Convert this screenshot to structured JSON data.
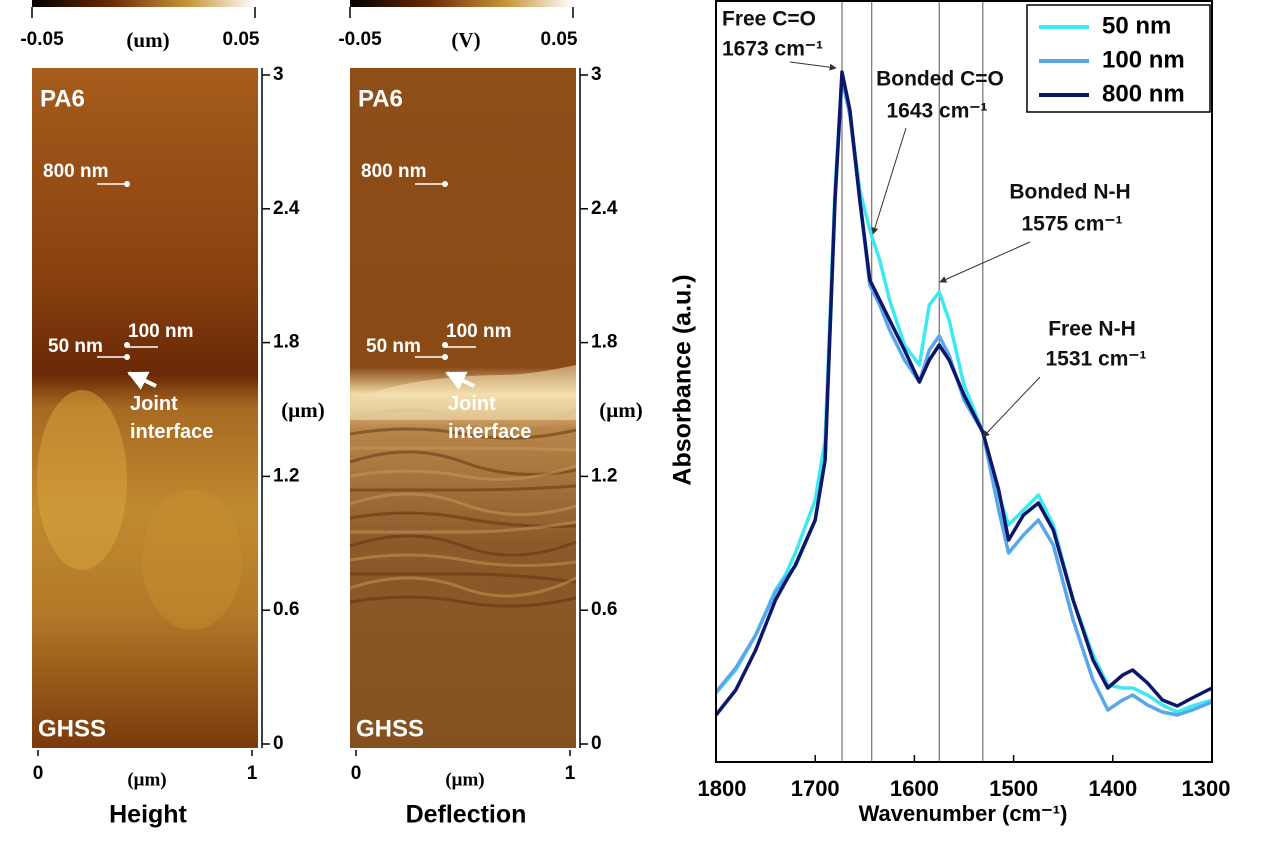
{
  "chart_data": [
    {
      "type": "heatmap",
      "title": "Height",
      "colorbar_label": "(um)",
      "clim": [
        -0.05,
        0.05
      ],
      "cticks": [
        -0.05,
        0.05
      ],
      "xlim": [
        0,
        1
      ],
      "xticks": [
        0,
        1
      ],
      "xlabel": "(μm)",
      "ylim": [
        0,
        3
      ],
      "yticks": [
        0,
        0.6,
        1.2,
        1.8,
        2.4,
        3
      ],
      "ylabel": "(μm)",
      "annotations": [
        "PA6",
        "GHSS",
        "800 nm",
        "50 nm",
        "100 nm",
        "Joint interface"
      ]
    },
    {
      "type": "heatmap",
      "title": "Deflection",
      "colorbar_label": "(V)",
      "clim": [
        -0.05,
        0.05
      ],
      "cticks": [
        -0.05,
        0.05
      ],
      "xlim": [
        0,
        1
      ],
      "xticks": [
        0,
        1
      ],
      "xlabel": "(μm)",
      "ylim": [
        0,
        3
      ],
      "yticks": [
        0,
        0.6,
        1.2,
        1.8,
        2.4,
        3
      ],
      "ylabel": "(μm)",
      "annotations": [
        "PA6",
        "GHSS",
        "800 nm",
        "50 nm",
        "100 nm",
        "Joint interface"
      ]
    },
    {
      "type": "line",
      "xlabel": "Wavenumber (cm⁻¹)",
      "ylabel": "Absorbance (a.u.)",
      "xlim": [
        1800,
        1300
      ],
      "xticks": [
        1800,
        1700,
        1600,
        1500,
        1400,
        1300
      ],
      "ylim": [
        0,
        762
      ],
      "legend": "upper right",
      "x": [
        1800,
        1780,
        1760,
        1740,
        1730,
        1720,
        1700,
        1690,
        1680,
        1673,
        1665,
        1655,
        1645,
        1635,
        1625,
        1610,
        1595,
        1585,
        1575,
        1565,
        1550,
        1531,
        1515,
        1505,
        1490,
        1475,
        1460,
        1440,
        1420,
        1405,
        1390,
        1380,
        1365,
        1350,
        1335,
        1320,
        1300
      ],
      "series": [
        {
          "name": "50 nm",
          "color": "#3ee8f0",
          "values": [
            69,
            92,
            127,
            172,
            187,
            209,
            262,
            322,
            572,
            687,
            647,
            572,
            532,
            502,
            462,
            417,
            397,
            457,
            470,
            442,
            377,
            330,
            267,
            237,
            252,
            267,
            237,
            162,
            107,
            77,
            74,
            74,
            67,
            57,
            50,
            56,
            62
          ]
        },
        {
          "name": "100 nm",
          "color": "#5aa6ec",
          "values": [
            70,
            94,
            127,
            170,
            184,
            196,
            242,
            302,
            562,
            684,
            647,
            562,
            477,
            457,
            432,
            402,
            380,
            412,
            426,
            407,
            362,
            330,
            252,
            209,
            227,
            242,
            217,
            142,
            82,
            52,
            62,
            67,
            57,
            50,
            47,
            52,
            60
          ]
        },
        {
          "name": "800 nm",
          "color": "#0c176a",
          "values": [
            47,
            72,
            112,
            162,
            180,
            197,
            242,
            302,
            562,
            690,
            652,
            562,
            482,
            462,
            442,
            412,
            380,
            402,
            417,
            402,
            367,
            330,
            272,
            222,
            247,
            259,
            232,
            162,
            102,
            74,
            87,
            92,
            79,
            62,
            56,
            64,
            74
          ]
        }
      ],
      "annotations": [
        {
          "name": "Free C=O",
          "value": 1673,
          "label": "1673 cm⁻¹"
        },
        {
          "name": "Bonded C=O",
          "value": 1643,
          "label": "1643 cm⁻¹"
        },
        {
          "name": "Bonded N-H",
          "value": 1575,
          "label": "1575 cm⁻¹"
        },
        {
          "name": "Free N-H",
          "value": 1531,
          "label": "1531 cm⁻¹"
        }
      ]
    }
  ]
}
